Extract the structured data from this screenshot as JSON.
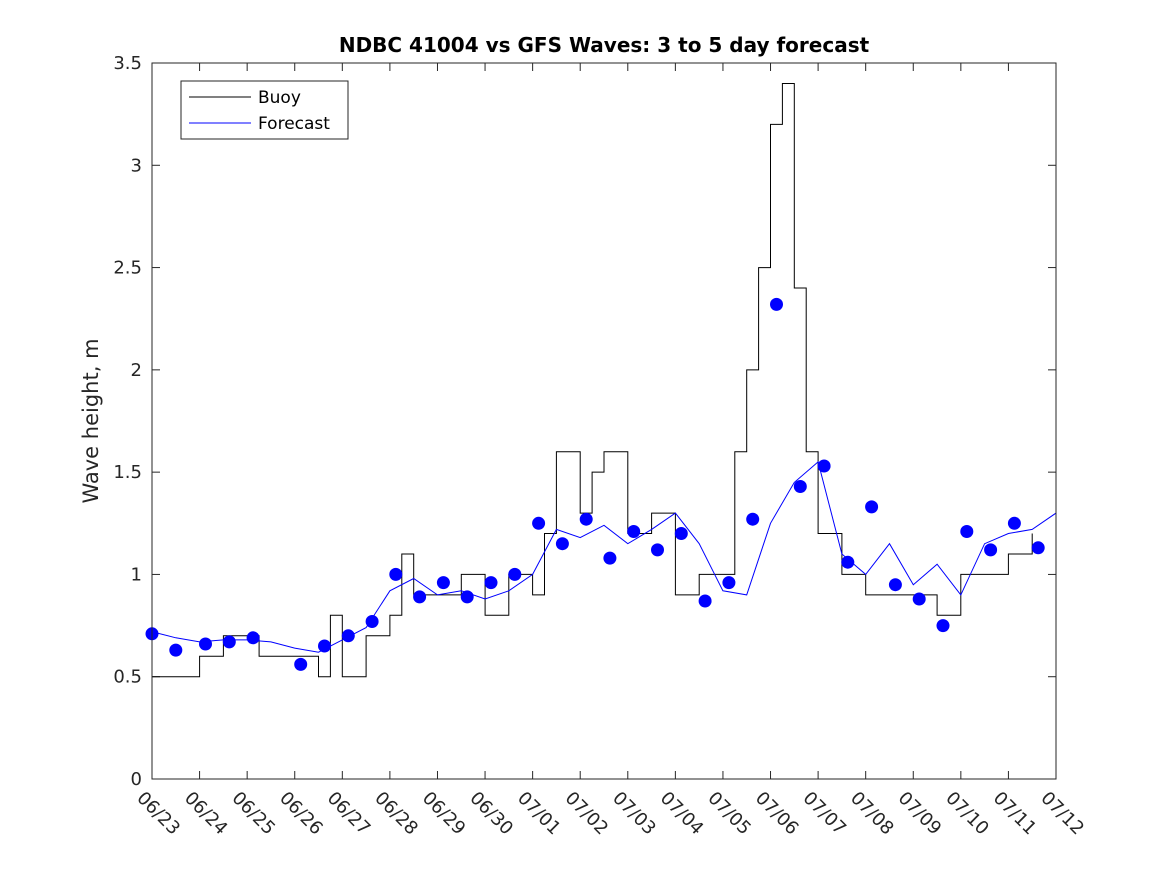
{
  "chart_data": {
    "type": "line",
    "title": "NDBC 41004 vs GFS Waves: 3 to 5 day forecast",
    "xlabel": "",
    "ylabel": "Wave height, m",
    "ylim": [
      0,
      3.5
    ],
    "yticks": [
      0,
      0.5,
      1,
      1.5,
      2,
      2.5,
      3,
      3.5
    ],
    "ytick_labels": [
      "0",
      "0.5",
      "1",
      "1.5",
      "2",
      "2.5",
      "3",
      "3.5"
    ],
    "xlim": [
      "06/23",
      "07/12"
    ],
    "xtick_labels": [
      "06/23",
      "06/24",
      "06/25",
      "06/26",
      "06/27",
      "06/28",
      "06/29",
      "06/30",
      "07/01",
      "07/02",
      "07/03",
      "07/04",
      "07/05",
      "07/06",
      "07/07",
      "07/08",
      "07/09",
      "07/10",
      "07/11",
      "07/12"
    ],
    "grid": false,
    "legend": {
      "position": "top-left",
      "entries": [
        {
          "label": "Buoy",
          "color": "#000000"
        },
        {
          "label": "Forecast",
          "color": "#0000ff"
        }
      ]
    },
    "colors": {
      "buoy": "#000000",
      "forecast": "#0000ff",
      "marker": "#0000ff"
    },
    "series": [
      {
        "name": "Buoy",
        "color": "#000000",
        "x": [
          "06/23 00:00",
          "06/23 06:00",
          "06/23 12:00",
          "06/24 00:00",
          "06/24 12:00",
          "06/25 00:00",
          "06/25 06:00",
          "06/25 12:00",
          "06/26 00:00",
          "06/26 06:00",
          "06/26 12:00",
          "06/26 18:00",
          "06/27 00:00",
          "06/27 06:00",
          "06/27 12:00",
          "06/28 00:00",
          "06/28 06:00",
          "06/28 12:00",
          "06/29 00:00",
          "06/29 12:00",
          "06/30 00:00",
          "06/30 12:00",
          "07/01 00:00",
          "07/01 06:00",
          "07/01 12:00",
          "07/02 00:00",
          "07/02 06:00",
          "07/02 12:00",
          "07/03 00:00",
          "07/03 12:00",
          "07/04 00:00",
          "07/04 12:00",
          "07/05 00:00",
          "07/05 06:00",
          "07/05 12:00",
          "07/05 18:00",
          "07/06 00:00",
          "07/06 06:00",
          "07/06 12:00",
          "07/06 18:00",
          "07/07 00:00",
          "07/07 12:00",
          "07/08 00:00",
          "07/08 12:00",
          "07/09 00:00",
          "07/09 12:00",
          "07/10 00:00",
          "07/10 12:00",
          "07/11 00:00",
          "07/11 12:00"
        ],
        "values": [
          0.5,
          0.5,
          0.5,
          0.6,
          0.7,
          0.7,
          0.6,
          0.6,
          0.6,
          0.6,
          0.5,
          0.8,
          0.5,
          0.5,
          0.7,
          0.8,
          1.1,
          0.9,
          0.9,
          1.0,
          0.8,
          1.0,
          0.9,
          1.2,
          1.6,
          1.3,
          1.5,
          1.6,
          1.2,
          1.3,
          0.9,
          1.0,
          1.0,
          1.6,
          2.0,
          2.5,
          3.2,
          3.4,
          2.4,
          1.6,
          1.2,
          1.0,
          0.9,
          0.9,
          0.9,
          0.8,
          1.0,
          1.0,
          1.1,
          1.2
        ]
      },
      {
        "name": "Forecast",
        "color": "#0000ff",
        "x": [
          "06/23 00:00",
          "06/23 12:00",
          "06/24 00:00",
          "06/24 12:00",
          "06/25 00:00",
          "06/25 12:00",
          "06/26 00:00",
          "06/26 12:00",
          "06/27 00:00",
          "06/27 12:00",
          "06/28 00:00",
          "06/28 12:00",
          "06/29 00:00",
          "06/29 12:00",
          "06/30 00:00",
          "06/30 12:00",
          "07/01 00:00",
          "07/01 12:00",
          "07/02 00:00",
          "07/02 12:00",
          "07/03 00:00",
          "07/03 12:00",
          "07/04 00:00",
          "07/04 12:00",
          "07/05 00:00",
          "07/05 12:00",
          "07/06 00:00",
          "07/06 12:00",
          "07/07 00:00",
          "07/07 12:00",
          "07/08 00:00",
          "07/08 12:00",
          "07/09 00:00",
          "07/09 12:00",
          "07/10 00:00",
          "07/10 12:00",
          "07/11 00:00",
          "07/11 12:00",
          "07/12 00:00"
        ],
        "values": [
          0.72,
          0.69,
          0.67,
          0.68,
          0.68,
          0.67,
          0.64,
          0.62,
          0.68,
          0.74,
          0.92,
          0.98,
          0.9,
          0.92,
          0.88,
          0.92,
          1.0,
          1.22,
          1.18,
          1.24,
          1.15,
          1.22,
          1.3,
          1.15,
          0.92,
          0.9,
          1.25,
          1.45,
          1.55,
          1.1,
          1.0,
          1.15,
          0.95,
          1.05,
          0.9,
          1.15,
          1.2,
          1.22,
          1.3
        ]
      }
    ],
    "markers": {
      "name": "Forecast",
      "x": [
        "06/23 00:00",
        "06/23 12:00",
        "06/24 03:00",
        "06/24 15:00",
        "06/25 03:00",
        "06/26 03:00",
        "06/26 15:00",
        "06/27 03:00",
        "06/27 15:00",
        "06/28 03:00",
        "06/28 15:00",
        "06/29 03:00",
        "06/29 15:00",
        "06/30 03:00",
        "06/30 15:00",
        "07/01 03:00",
        "07/01 15:00",
        "07/02 03:00",
        "07/02 15:00",
        "07/03 03:00",
        "07/03 15:00",
        "07/04 03:00",
        "07/04 15:00",
        "07/05 03:00",
        "07/05 15:00",
        "07/06 03:00",
        "07/06 15:00",
        "07/07 03:00",
        "07/07 15:00",
        "07/08 03:00",
        "07/08 15:00",
        "07/09 03:00",
        "07/09 15:00",
        "07/10 03:00",
        "07/10 15:00",
        "07/11 03:00",
        "07/11 15:00"
      ],
      "values": [
        0.71,
        0.63,
        0.66,
        0.67,
        0.69,
        0.56,
        0.65,
        0.7,
        0.77,
        1.0,
        0.89,
        0.96,
        0.89,
        0.96,
        1.0,
        1.25,
        1.15,
        1.27,
        1.08,
        1.21,
        1.12,
        1.2,
        0.87,
        0.96,
        1.27,
        2.32,
        1.43,
        1.53,
        1.06,
        1.33,
        0.95,
        0.88,
        0.75,
        1.21,
        1.12,
        1.25,
        1.13
      ]
    }
  }
}
